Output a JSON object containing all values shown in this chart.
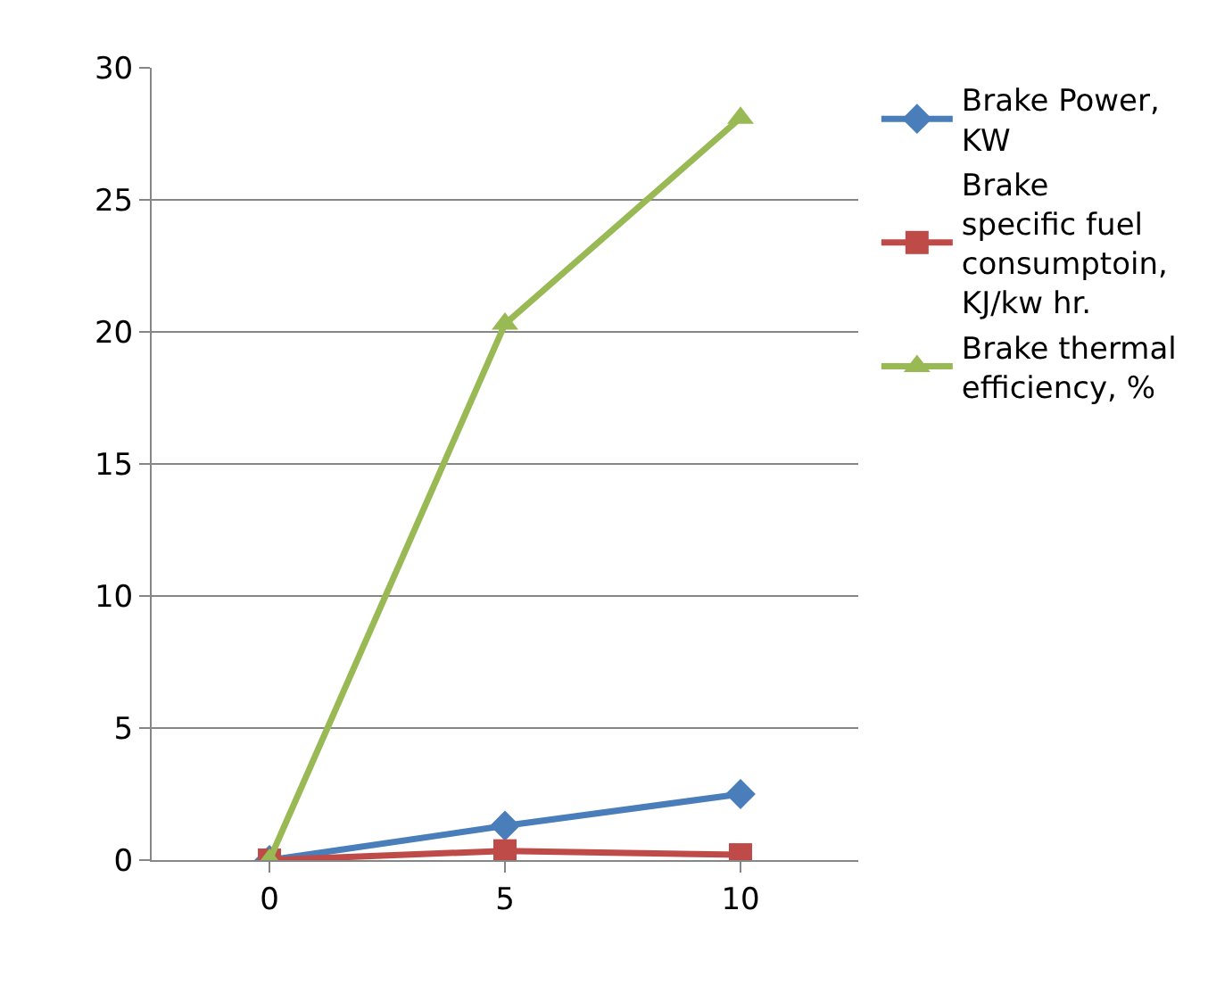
{
  "chart_data": {
    "type": "line",
    "categories": [
      "0",
      "5",
      "10"
    ],
    "series": [
      {
        "name": "Brake Power, KW",
        "color": "#4a7ebb",
        "marker": "diamond",
        "values": [
          0,
          1.3,
          2.5
        ]
      },
      {
        "name": "Brake specific fuel consumptoin, KJ/kw hr.",
        "color": "#be4b48",
        "marker": "square",
        "values": [
          0,
          0.35,
          0.2
        ]
      },
      {
        "name": "Brake thermal efficiency, %",
        "color": "#98b954",
        "marker": "triangle",
        "values": [
          0,
          20.3,
          28.1
        ]
      }
    ],
    "ylim": [
      0,
      30
    ],
    "yticks": [
      0,
      5,
      10,
      15,
      20,
      25,
      30
    ],
    "grid": "y",
    "legend": "right",
    "line_style": "solid"
  }
}
